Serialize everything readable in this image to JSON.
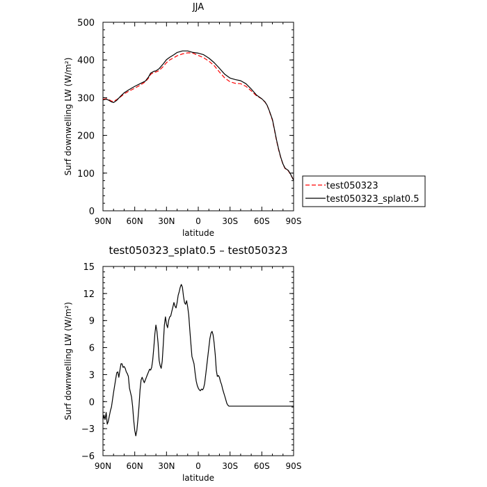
{
  "chart_data": [
    {
      "type": "line",
      "title": "JJA",
      "xlabel": "latitude",
      "ylabel": "Surf downwelling LW (W/m²)",
      "xlim": [
        -90,
        90
      ],
      "ylim": [
        0,
        500
      ],
      "x_tick_values": [
        -90,
        -60,
        -30,
        0,
        30,
        60,
        90
      ],
      "x_tick_labels": [
        "90N",
        "60N",
        "30N",
        "0",
        "30S",
        "60S",
        "90S"
      ],
      "y_ticks": [
        0,
        100,
        200,
        300,
        400,
        500
      ],
      "legend_position": "right-middle",
      "series": [
        {
          "name": "test050323",
          "color": "#ff0000",
          "dash": "dashed",
          "points": [
            [
              -90,
              296
            ],
            [
              -87,
              297
            ],
            [
              -85,
              296
            ],
            [
              -82,
              291
            ],
            [
              -80,
              290
            ],
            [
              -77,
              295
            ],
            [
              -73,
              303
            ],
            [
              -70,
              310
            ],
            [
              -65,
              318
            ],
            [
              -60,
              325
            ],
            [
              -55,
              333
            ],
            [
              -50,
              342
            ],
            [
              -47,
              352
            ],
            [
              -45,
              362
            ],
            [
              -42,
              367
            ],
            [
              -40,
              368
            ],
            [
              -37,
              372
            ],
            [
              -33,
              383
            ],
            [
              -30,
              393
            ],
            [
              -27,
              400
            ],
            [
              -23,
              406
            ],
            [
              -20,
              411
            ],
            [
              -15,
              416
            ],
            [
              -10,
              419
            ],
            [
              -5,
              418
            ],
            [
              0,
              412
            ],
            [
              5,
              406
            ],
            [
              10,
              397
            ],
            [
              15,
              385
            ],
            [
              20,
              368
            ],
            [
              25,
              352
            ],
            [
              30,
              342
            ],
            [
              35,
              338
            ],
            [
              40,
              337
            ],
            [
              45,
              330
            ],
            [
              50,
              318
            ],
            [
              55,
              305
            ],
            [
              60,
              297
            ],
            [
              63,
              288
            ],
            [
              65,
              280
            ],
            [
              67,
              265
            ],
            [
              70,
              240
            ],
            [
              72,
              213
            ],
            [
              74,
              185
            ],
            [
              76,
              160
            ],
            [
              78,
              140
            ],
            [
              80,
              123
            ],
            [
              82,
              112
            ],
            [
              85,
              106
            ],
            [
              87,
              97
            ],
            [
              90,
              82
            ]
          ]
        },
        {
          "name": "test050323_splat0.5",
          "color": "#000000",
          "dash": "solid",
          "points": [
            [
              -90,
              294
            ],
            [
              -87,
              296
            ],
            [
              -85,
              294
            ],
            [
              -82,
              289
            ],
            [
              -80,
              287
            ],
            [
              -77,
              293
            ],
            [
              -73,
              305
            ],
            [
              -70,
              313
            ],
            [
              -65,
              322
            ],
            [
              -60,
              330
            ],
            [
              -55,
              337
            ],
            [
              -50,
              344
            ],
            [
              -47,
              355
            ],
            [
              -45,
              365
            ],
            [
              -42,
              370
            ],
            [
              -40,
              371
            ],
            [
              -37,
              377
            ],
            [
              -33,
              390
            ],
            [
              -30,
              401
            ],
            [
              -27,
              407
            ],
            [
              -23,
              414
            ],
            [
              -20,
              420
            ],
            [
              -15,
              424
            ],
            [
              -10,
              424
            ],
            [
              -5,
              420
            ],
            [
              0,
              418
            ],
            [
              5,
              414
            ],
            [
              10,
              405
            ],
            [
              15,
              393
            ],
            [
              20,
              378
            ],
            [
              25,
              362
            ],
            [
              30,
              352
            ],
            [
              35,
              348
            ],
            [
              40,
              345
            ],
            [
              45,
              337
            ],
            [
              50,
              323
            ],
            [
              55,
              307
            ],
            [
              60,
              297
            ],
            [
              63,
              289
            ],
            [
              65,
              280
            ],
            [
              67,
              266
            ],
            [
              70,
              242
            ],
            [
              72,
              215
            ],
            [
              74,
              187
            ],
            [
              76,
              162
            ],
            [
              78,
              141
            ],
            [
              80,
              124
            ],
            [
              82,
              113
            ],
            [
              85,
              107
            ],
            [
              87,
              98
            ],
            [
              90,
              81
            ]
          ]
        }
      ]
    },
    {
      "type": "line",
      "title": "test050323_splat0.5 – test050323",
      "xlabel": "latitude",
      "ylabel": "Surf downwelling LW (W/m²)",
      "xlim": [
        -90,
        90
      ],
      "ylim": [
        -6,
        15
      ],
      "x_tick_values": [
        -90,
        -60,
        -30,
        0,
        30,
        60,
        90
      ],
      "x_tick_labels": [
        "90N",
        "60N",
        "30N",
        "0",
        "30S",
        "60S",
        "90S"
      ],
      "y_ticks": [
        -6,
        -3,
        0,
        3,
        6,
        9,
        12,
        15
      ],
      "series": [
        {
          "name": "",
          "color": "#000000",
          "dash": "solid",
          "points": [
            [
              -90,
              -2.0
            ],
            [
              -89,
              -1.5
            ],
            [
              -88,
              -2.0
            ],
            [
              -87,
              -1.2
            ],
            [
              -86,
              -2.5
            ],
            [
              -85,
              -2.2
            ],
            [
              -83,
              -1.0
            ],
            [
              -82,
              -0.6
            ],
            [
              -80,
              1.0
            ],
            [
              -78,
              2.5
            ],
            [
              -77,
              3.2
            ],
            [
              -76,
              3.3
            ],
            [
              -75,
              2.7
            ],
            [
              -74,
              3.5
            ],
            [
              -73,
              4.2
            ],
            [
              -72,
              4.2
            ],
            [
              -71,
              3.8
            ],
            [
              -70,
              3.9
            ],
            [
              -69,
              3.7
            ],
            [
              -68,
              3.3
            ],
            [
              -67,
              3.1
            ],
            [
              -66,
              2.8
            ],
            [
              -65,
              1.5
            ],
            [
              -63,
              0.5
            ],
            [
              -62,
              -0.5
            ],
            [
              -61,
              -2.0
            ],
            [
              -60,
              -3.2
            ],
            [
              -59,
              -3.8
            ],
            [
              -58,
              -3.2
            ],
            [
              -57,
              -2.0
            ],
            [
              -56,
              -0.5
            ],
            [
              -55,
              1.3
            ],
            [
              -54,
              2.4
            ],
            [
              -53,
              2.7
            ],
            [
              -52,
              2.4
            ],
            [
              -51,
              2.1
            ],
            [
              -50,
              2.4
            ],
            [
              -49,
              2.7
            ],
            [
              -48,
              3.0
            ],
            [
              -47,
              3.3
            ],
            [
              -46,
              3.6
            ],
            [
              -45,
              3.5
            ],
            [
              -44,
              3.8
            ],
            [
              -43,
              4.6
            ],
            [
              -42,
              6.0
            ],
            [
              -41,
              7.5
            ],
            [
              -40,
              8.5
            ],
            [
              -39,
              7.8
            ],
            [
              -38,
              6.5
            ],
            [
              -37,
              4.6
            ],
            [
              -36,
              4.0
            ],
            [
              -35,
              3.7
            ],
            [
              -34,
              4.5
            ],
            [
              -33,
              6.5
            ],
            [
              -32,
              8.5
            ],
            [
              -31,
              9.4
            ],
            [
              -30,
              8.6
            ],
            [
              -29,
              8.2
            ],
            [
              -28,
              9.0
            ],
            [
              -27,
              9.4
            ],
            [
              -26,
              9.5
            ],
            [
              -25,
              10.0
            ],
            [
              -24,
              10.5
            ],
            [
              -23,
              11.0
            ],
            [
              -22,
              10.6
            ],
            [
              -21,
              10.4
            ],
            [
              -20,
              11.0
            ],
            [
              -19,
              11.8
            ],
            [
              -18,
              12.2
            ],
            [
              -17,
              12.7
            ],
            [
              -16,
              13.0
            ],
            [
              -15,
              12.7
            ],
            [
              -14,
              11.7
            ],
            [
              -13,
              11.0
            ],
            [
              -12,
              10.8
            ],
            [
              -11,
              11.2
            ],
            [
              -10,
              10.5
            ],
            [
              -9,
              9.6
            ],
            [
              -8,
              8.0
            ],
            [
              -7,
              6.5
            ],
            [
              -6,
              5.0
            ],
            [
              -5,
              4.6
            ],
            [
              -4,
              4.2
            ],
            [
              -3,
              3.2
            ],
            [
              -2,
              2.3
            ],
            [
              -1,
              1.8
            ],
            [
              0,
              1.5
            ],
            [
              1,
              1.3
            ],
            [
              2,
              1.2
            ],
            [
              3,
              1.4
            ],
            [
              4,
              1.3
            ],
            [
              5,
              1.5
            ],
            [
              6,
              2.0
            ],
            [
              7,
              3.0
            ],
            [
              8,
              4.0
            ],
            [
              9,
              5.0
            ],
            [
              10,
              6.0
            ],
            [
              11,
              7.0
            ],
            [
              12,
              7.6
            ],
            [
              13,
              7.8
            ],
            [
              14,
              7.4
            ],
            [
              15,
              6.5
            ],
            [
              16,
              5.2
            ],
            [
              17,
              3.5
            ],
            [
              18,
              2.8
            ],
            [
              19,
              2.9
            ],
            [
              20,
              2.7
            ],
            [
              21,
              2.2
            ],
            [
              22,
              1.9
            ],
            [
              23,
              1.4
            ],
            [
              24,
              1.0
            ],
            [
              25,
              0.6
            ],
            [
              26,
              0.2
            ],
            [
              27,
              -0.2
            ],
            [
              28,
              -0.4
            ],
            [
              29,
              -0.5
            ],
            [
              90,
              -0.5
            ]
          ]
        }
      ]
    }
  ]
}
